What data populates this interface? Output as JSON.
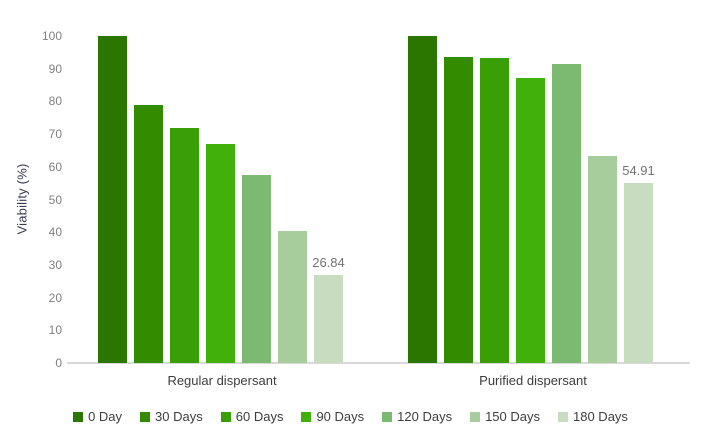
{
  "chart_data": {
    "type": "bar",
    "title": "",
    "xlabel": "",
    "ylabel": "Viability (%)",
    "categories": [
      "Regular dispersant",
      "Purified dispersant"
    ],
    "series": [
      {
        "name": "0 Day",
        "color": "#2a7600",
        "values": [
          100,
          100
        ]
      },
      {
        "name": "30 Days",
        "color": "#338c00",
        "values": [
          79,
          93.5
        ]
      },
      {
        "name": "60 Days",
        "color": "#3a9e06",
        "values": [
          72,
          93.3
        ]
      },
      {
        "name": "90 Days",
        "color": "#41b00b",
        "values": [
          67,
          87.1
        ]
      },
      {
        "name": "120 Days",
        "color": "#7dba71",
        "values": [
          57.5,
          91.3
        ]
      },
      {
        "name": "150 Days",
        "color": "#a6cd9b",
        "values": [
          40.3,
          63.2
        ]
      },
      {
        "name": "180 Days",
        "color": "#c8ddbf",
        "values": [
          26.84,
          54.91
        ]
      }
    ],
    "annotations": [
      {
        "category": 0,
        "series": 6,
        "text": "26.84"
      },
      {
        "category": 1,
        "series": 6,
        "text": "54.91"
      }
    ],
    "ylim": [
      0,
      100
    ],
    "yticks": [
      0,
      10,
      20,
      30,
      40,
      50,
      60,
      70,
      80,
      90,
      100
    ],
    "grid": false,
    "legend_position": "bottom"
  },
  "colors": {
    "background": "#ffffff",
    "axis_line": "#d9d9d9",
    "tick_label": "#808080",
    "axis_title": "#3a3a52",
    "category_label": "#3d3d3d",
    "legend_label": "#3d3d3d",
    "value_label": "#737373"
  }
}
